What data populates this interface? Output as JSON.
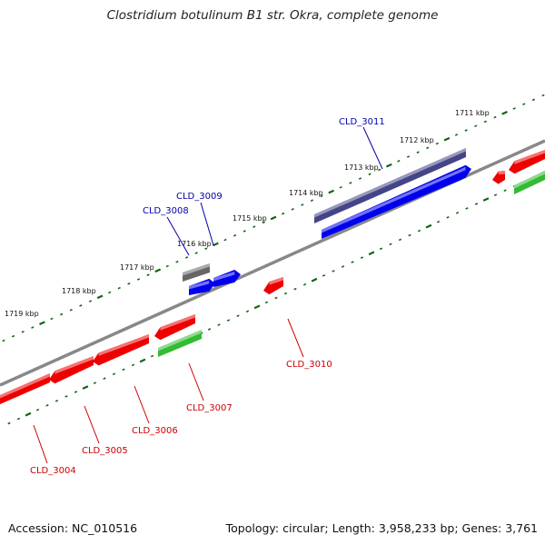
{
  "title": "Clostridium botulinum B1 str. Okra, complete genome",
  "footer": {
    "accession": "Accession: NC_010516",
    "summary": "Topology: circular; Length: 3,958,233 bp; Genes: 3,761"
  },
  "colors": {
    "forward_gene": "#0000ee",
    "reverse_gene": "#ee0000",
    "rna_gene": "#33bb33",
    "gray_feature": "#666666",
    "purple_feature": "#444488",
    "backbone": "#888888",
    "tick": "#116611",
    "forward_label": "#0000aa",
    "reverse_label": "#cc0000"
  },
  "ticks": [
    {
      "label": "1711 kbp"
    },
    {
      "label": "1712 kbp"
    },
    {
      "label": "1713 kbp"
    },
    {
      "label": "1714 kbp"
    },
    {
      "label": "1715 kbp"
    },
    {
      "label": "1716 kbp"
    },
    {
      "label": "1717 kbp"
    },
    {
      "label": "1718 kbp"
    },
    {
      "label": "1719 kbp"
    }
  ],
  "gene_labels": [
    {
      "text": "CLD_3011",
      "strand": "forward"
    },
    {
      "text": "CLD_3009",
      "strand": "forward"
    },
    {
      "text": "CLD_3008",
      "strand": "forward"
    },
    {
      "text": "CLD_3010",
      "strand": "reverse"
    },
    {
      "text": "CLD_3007",
      "strand": "reverse"
    },
    {
      "text": "CLD_3006",
      "strand": "reverse"
    },
    {
      "text": "CLD_3005",
      "strand": "reverse"
    },
    {
      "text": "CLD_3004",
      "strand": "reverse"
    }
  ]
}
